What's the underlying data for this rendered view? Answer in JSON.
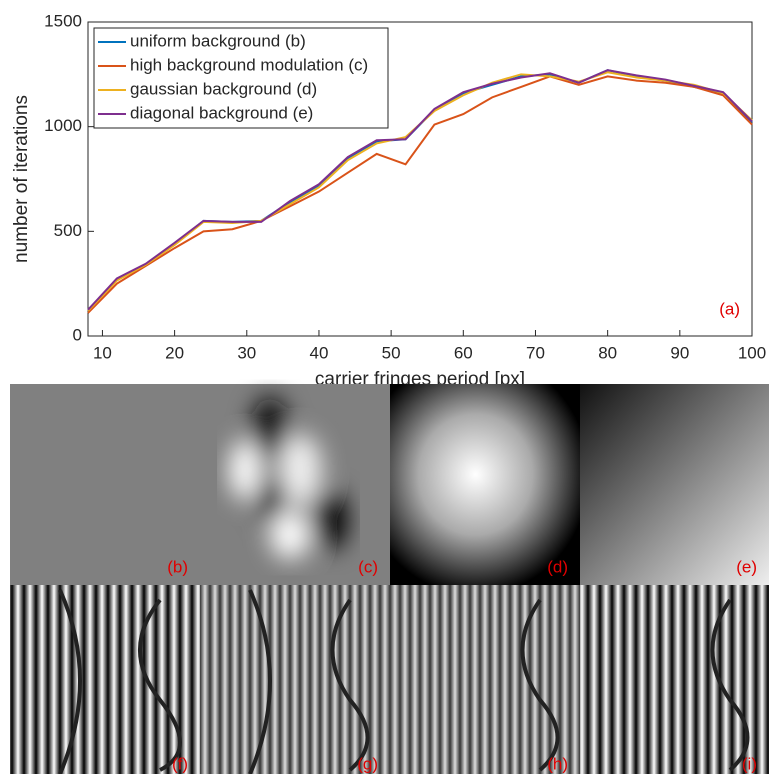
{
  "chart_data": {
    "type": "line",
    "x": [
      8,
      12,
      16,
      20,
      24,
      28,
      32,
      36,
      40,
      44,
      48,
      52,
      56,
      60,
      64,
      68,
      72,
      76,
      80,
      84,
      88,
      92,
      96,
      100
    ],
    "series": [
      {
        "name": "uniform background (b)",
        "color": "#0072bd",
        "values": [
          120,
          270,
          340,
          440,
          550,
          545,
          550,
          640,
          720,
          850,
          930,
          940,
          1080,
          1160,
          1200,
          1240,
          1250,
          1210,
          1270,
          1240,
          1220,
          1190,
          1160,
          1020
        ]
      },
      {
        "name": "high background modulation (c)",
        "color": "#d95319",
        "values": [
          110,
          250,
          335,
          420,
          500,
          510,
          550,
          620,
          690,
          780,
          870,
          820,
          1010,
          1060,
          1140,
          1190,
          1240,
          1200,
          1240,
          1220,
          1210,
          1190,
          1150,
          1010
        ]
      },
      {
        "name": "gaussian background (d)",
        "color": "#edb120",
        "values": [
          120,
          265,
          340,
          435,
          545,
          540,
          550,
          630,
          710,
          840,
          920,
          950,
          1075,
          1150,
          1210,
          1250,
          1240,
          1215,
          1260,
          1235,
          1220,
          1200,
          1160,
          1030
        ]
      },
      {
        "name": "diagonal background (e)",
        "color": "#7e2f8e",
        "values": [
          125,
          275,
          345,
          445,
          550,
          545,
          545,
          645,
          725,
          855,
          935,
          940,
          1085,
          1165,
          1205,
          1235,
          1255,
          1210,
          1270,
          1245,
          1225,
          1195,
          1165,
          1025
        ]
      }
    ],
    "xlabel": "carrier fringes period [px]",
    "ylabel": "number of iterations",
    "annotation": "(a)",
    "xlim": [
      8,
      100
    ],
    "xticks": [
      10,
      20,
      30,
      40,
      50,
      60,
      70,
      80,
      90,
      100
    ],
    "ylim": [
      0,
      1500
    ],
    "yticks": [
      0,
      500,
      1000,
      1500
    ],
    "legend": "upper-left"
  },
  "panels": [
    "(b)",
    "(c)",
    "(d)",
    "(e)",
    "(f)",
    "(g)",
    "(h)",
    "(i)"
  ]
}
